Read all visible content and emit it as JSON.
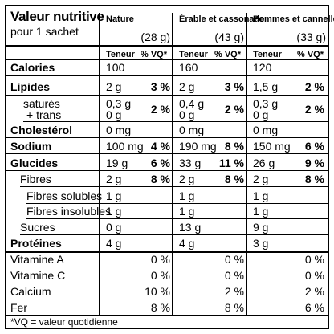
{
  "title": "Valeur nutritive",
  "serving": "pour 1 sachet",
  "columns": [
    {
      "name": "Nature",
      "amount": "(28 g)"
    },
    {
      "name": "Érable et cassonade",
      "amount": "(43 g)"
    },
    {
      "name": "Pommes et cannelle",
      "amount": "(33 g)"
    }
  ],
  "subheaders": {
    "teneur": "Teneur",
    "vq": "% VQ*"
  },
  "rows": [
    {
      "label": "Calories",
      "bold": true,
      "cells": [
        {
          "v": "100",
          "p": ""
        },
        {
          "v": "160",
          "p": ""
        },
        {
          "v": "120",
          "p": ""
        }
      ]
    },
    {
      "label": "Lipides",
      "bold": true,
      "cells": [
        {
          "v": "2 g",
          "p": "3 %"
        },
        {
          "v": "2 g",
          "p": "3 %"
        },
        {
          "v": "1,5 g",
          "p": "2 %"
        }
      ]
    },
    {
      "label": "saturés",
      "label2": "+ trans",
      "cells": [
        {
          "v": "0,3 g",
          "v2": "0 g",
          "p": "2 %"
        },
        {
          "v": "0,4 g",
          "v2": "0 g",
          "p": "2 %"
        },
        {
          "v": "0,3 g",
          "v2": "0 g",
          "p": "2 %"
        }
      ]
    },
    {
      "label": "Cholestérol",
      "bold": true,
      "cells": [
        {
          "v": "0 mg",
          "p": ""
        },
        {
          "v": "0 mg",
          "p": ""
        },
        {
          "v": "0 mg",
          "p": ""
        }
      ]
    },
    {
      "label": "Sodium",
      "bold": true,
      "cells": [
        {
          "v": "100 mg",
          "p": "4 %"
        },
        {
          "v": "190 mg",
          "p": "8 %"
        },
        {
          "v": "150 mg",
          "p": "6 %"
        }
      ]
    },
    {
      "label": "Glucides",
      "bold": true,
      "cells": [
        {
          "v": "19 g",
          "p": "6 %"
        },
        {
          "v": "33 g",
          "p": "11 %"
        },
        {
          "v": "26 g",
          "p": "9 %"
        }
      ]
    },
    {
      "label": "Fibres",
      "cells": [
        {
          "v": "2 g",
          "p": "8 %"
        },
        {
          "v": "2 g",
          "p": "8 %"
        },
        {
          "v": "2 g",
          "p": "8 %"
        }
      ]
    },
    {
      "label": "Fibres solubles",
      "cells": [
        {
          "v": "1 g",
          "p": ""
        },
        {
          "v": "1 g",
          "p": ""
        },
        {
          "v": "1 g",
          "p": ""
        }
      ]
    },
    {
      "label": "Fibres insolubles",
      "cells": [
        {
          "v": "1 g",
          "p": ""
        },
        {
          "v": "1 g",
          "p": ""
        },
        {
          "v": "1 g",
          "p": ""
        }
      ]
    },
    {
      "label": "Sucres",
      "cells": [
        {
          "v": "0 g",
          "p": ""
        },
        {
          "v": "13 g",
          "p": ""
        },
        {
          "v": "9 g",
          "p": ""
        }
      ]
    },
    {
      "label": "Protéines",
      "bold": true,
      "cells": [
        {
          "v": "4 g",
          "p": ""
        },
        {
          "v": "4 g",
          "p": ""
        },
        {
          "v": "3 g",
          "p": ""
        }
      ]
    },
    {
      "label": "Vitamine A",
      "cells": [
        {
          "v": "",
          "p": "0 %"
        },
        {
          "v": "",
          "p": "0 %"
        },
        {
          "v": "",
          "p": "0 %"
        }
      ]
    },
    {
      "label": "Vitamine C",
      "cells": [
        {
          "v": "",
          "p": "0 %"
        },
        {
          "v": "",
          "p": "0 %"
        },
        {
          "v": "",
          "p": "0 %"
        }
      ]
    },
    {
      "label": "Calcium",
      "cells": [
        {
          "v": "",
          "p": "10 %"
        },
        {
          "v": "",
          "p": "2 %"
        },
        {
          "v": "",
          "p": "2 %"
        }
      ]
    },
    {
      "label": "Fer",
      "cells": [
        {
          "v": "",
          "p": "8 %"
        },
        {
          "v": "",
          "p": "8 %"
        },
        {
          "v": "",
          "p": "6 %"
        }
      ]
    }
  ],
  "footnote": "*VQ = valeur quotidienne"
}
